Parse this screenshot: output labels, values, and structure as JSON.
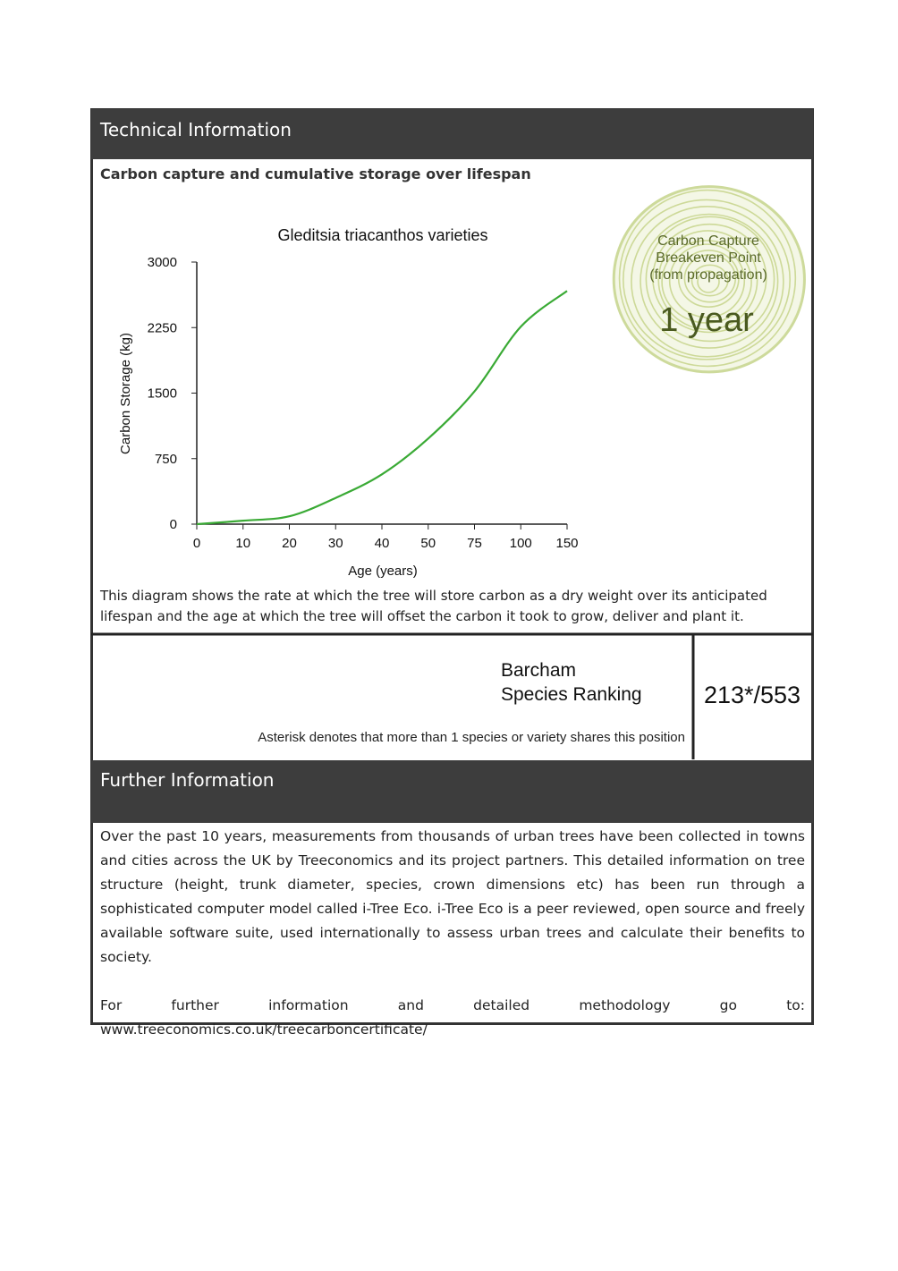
{
  "technical_information": {
    "heading": "Technical Information",
    "subheading": "Carbon capture and cumulative storage over lifespan",
    "description": "This diagram shows the rate at which the tree will store carbon as a dry weight over its anticipated lifespan and the age at which the tree will offset the carbon it took to grow, deliver and plant it."
  },
  "chart_data": {
    "type": "line",
    "title": "Gleditsia triacanthos varieties",
    "x_label": "Age (years)",
    "y_label": "Carbon Storage (kg)",
    "categories": [
      "0",
      "10",
      "20",
      "30",
      "40",
      "50",
      "75",
      "100",
      "150"
    ],
    "values": [
      0,
      40,
      90,
      300,
      570,
      980,
      1520,
      2260,
      2670
    ],
    "color": "#3aaa35",
    "ylim": [
      0,
      3000
    ],
    "yticks": [
      0,
      750,
      1500,
      2250,
      3000
    ]
  },
  "breakeven": {
    "label_lines": [
      "Carbon Capture",
      "Breakeven Point",
      "(from propagation)"
    ],
    "value": "1 year"
  },
  "ranking": {
    "label_lines": [
      "Barcham",
      "Species Ranking"
    ],
    "value": "213*/553",
    "note": "Asterisk denotes that more than 1 species or variety shares this position"
  },
  "further_information": {
    "heading": "Further Information",
    "paragraphs": [
      "Over the past 10 years, measurements from thousands of urban trees have been collected in towns and cities across the UK by Treeconomics and its project partners. This detailed information on tree structure (height, trunk diameter, species, crown dimensions etc) has been run through a sophisticated computer model called i-Tree Eco. i-Tree Eco is a peer reviewed, open source and freely available software suite, used internationally to assess urban trees and calculate their benefits to society.",
      "For further information and detailed methodology go to: www.treeconomics.co.uk/treecarboncertificate/"
    ]
  }
}
